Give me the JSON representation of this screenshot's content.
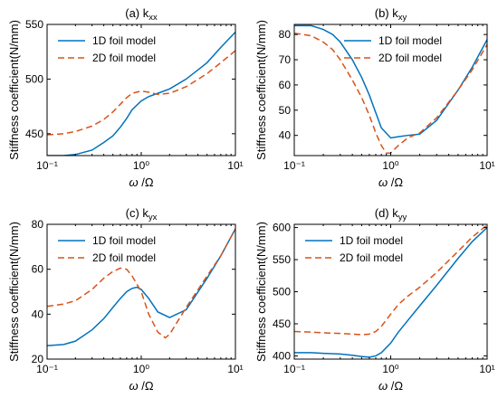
{
  "chart_data": [
    {
      "type": "line",
      "title_main": "(a) k",
      "title_sub": "xx",
      "xlabel_sym": "ω",
      "xlabel_rest": "/Ω",
      "ylabel": "Stiffness coefficient(N/mm)",
      "xscale": "log",
      "xlim": [
        0.1,
        10
      ],
      "ylim": [
        430,
        550
      ],
      "xticks": [
        0.1,
        1,
        10
      ],
      "xtick_labels": [
        "10⁻¹",
        "10⁰",
        "10¹"
      ],
      "yticks": [
        450,
        500,
        550
      ],
      "legend_location": "upper-left",
      "series": [
        {
          "name": "1D foil model",
          "color": "#0072BD",
          "dash": "solid",
          "x": [
            0.1,
            0.15,
            0.2,
            0.3,
            0.4,
            0.5,
            0.6,
            0.7,
            0.8,
            1.0,
            1.2,
            1.5,
            2,
            3,
            5,
            7,
            10
          ],
          "y": [
            430,
            430,
            431,
            435,
            442,
            448,
            456,
            464,
            472,
            480,
            484,
            487,
            491,
            500,
            515,
            529,
            543
          ]
        },
        {
          "name": "2D foil model",
          "color": "#D95319",
          "dash": "dashed",
          "x": [
            0.1,
            0.15,
            0.2,
            0.3,
            0.4,
            0.5,
            0.6,
            0.7,
            0.8,
            1.0,
            1.2,
            1.5,
            2,
            3,
            5,
            7,
            10
          ],
          "y": [
            449,
            450,
            452,
            457,
            463,
            470,
            477,
            483,
            487,
            489,
            488,
            486,
            487,
            493,
            505,
            515,
            526
          ]
        }
      ]
    },
    {
      "type": "line",
      "title_main": "(b) k",
      "title_sub": "xy",
      "xlabel_sym": "ω",
      "xlabel_rest": "/Ω",
      "ylabel": "Stiffness coefficient(N/mm)",
      "xscale": "log",
      "xlim": [
        0.1,
        10
      ],
      "ylim": [
        32,
        84
      ],
      "xticks": [
        0.1,
        1,
        10
      ],
      "xtick_labels": [
        "10⁻¹",
        "10⁰",
        "10¹"
      ],
      "yticks": [
        40,
        50,
        60,
        70,
        80
      ],
      "legend_location": "upper-right",
      "series": [
        {
          "name": "1D foil model",
          "color": "#0072BD",
          "dash": "solid",
          "x": [
            0.1,
            0.15,
            0.2,
            0.25,
            0.3,
            0.4,
            0.5,
            0.6,
            0.7,
            0.8,
            1.0,
            1.2,
            1.5,
            2,
            3,
            5,
            7,
            10
          ],
          "y": [
            83.5,
            83.5,
            82,
            80,
            77,
            70,
            63,
            56,
            49,
            43,
            39,
            39.5,
            40,
            40.5,
            46,
            58,
            67,
            78
          ]
        },
        {
          "name": "2D foil model",
          "color": "#D95319",
          "dash": "dashed",
          "x": [
            0.1,
            0.15,
            0.2,
            0.25,
            0.3,
            0.4,
            0.5,
            0.6,
            0.7,
            0.8,
            0.9,
            1.0,
            1.2,
            1.5,
            2,
            3,
            5,
            7,
            10
          ],
          "y": [
            80.5,
            79.5,
            77,
            74,
            70,
            62,
            55,
            48,
            41,
            36,
            33,
            33,
            36,
            39,
            41,
            47,
            58,
            66,
            76
          ]
        }
      ]
    },
    {
      "type": "line",
      "title_main": "(c) k",
      "title_sub": "yx",
      "xlabel_sym": "ω",
      "xlabel_rest": "/Ω",
      "ylabel": "Stiffness coefficient(N/mm)",
      "xscale": "log",
      "xlim": [
        0.1,
        10
      ],
      "ylim": [
        20,
        80
      ],
      "xticks": [
        0.1,
        1,
        10
      ],
      "xtick_labels": [
        "10⁻¹",
        "10⁰",
        "10¹"
      ],
      "yticks": [
        20,
        40,
        60,
        80
      ],
      "legend_location": "upper-left",
      "series": [
        {
          "name": "1D foil model",
          "color": "#0072BD",
          "dash": "solid",
          "x": [
            0.1,
            0.15,
            0.2,
            0.3,
            0.4,
            0.5,
            0.6,
            0.7,
            0.8,
            0.9,
            1.0,
            1.2,
            1.5,
            2,
            3,
            5,
            7,
            10
          ],
          "y": [
            26,
            26.5,
            28,
            33,
            38,
            43,
            47,
            50,
            51.5,
            52,
            51,
            47,
            41,
            38.5,
            42,
            56,
            66,
            78
          ]
        },
        {
          "name": "2D foil model",
          "color": "#D95319",
          "dash": "dashed",
          "x": [
            0.1,
            0.15,
            0.2,
            0.3,
            0.4,
            0.5,
            0.6,
            0.7,
            0.8,
            1.0,
            1.2,
            1.5,
            1.8,
            2,
            3,
            5,
            7,
            10
          ],
          "y": [
            43.5,
            44.5,
            46,
            51,
            56,
            59,
            60.5,
            60,
            57,
            50,
            40,
            32,
            29.5,
            31,
            43,
            57,
            66,
            78
          ]
        }
      ]
    },
    {
      "type": "line",
      "title_main": "(d) k",
      "title_sub": "yy",
      "xlabel_sym": "ω",
      "xlabel_rest": "/Ω",
      "ylabel": "Stiffness coefficient(N/mm)",
      "xscale": "log",
      "xlim": [
        0.1,
        10
      ],
      "ylim": [
        395,
        605
      ],
      "xticks": [
        0.1,
        1,
        10
      ],
      "xtick_labels": [
        "10⁻¹",
        "10⁰",
        "10¹"
      ],
      "yticks": [
        400,
        450,
        500,
        550,
        600
      ],
      "legend_location": "upper-left",
      "series": [
        {
          "name": "1D foil model",
          "color": "#0072BD",
          "dash": "solid",
          "x": [
            0.1,
            0.15,
            0.2,
            0.3,
            0.4,
            0.5,
            0.6,
            0.7,
            0.8,
            1.0,
            1.2,
            1.5,
            2,
            3,
            5,
            7,
            10
          ],
          "y": [
            405,
            405,
            404,
            403,
            401,
            399,
            398,
            400,
            405,
            420,
            437,
            455,
            478,
            510,
            552,
            578,
            600
          ]
        },
        {
          "name": "2D foil model",
          "color": "#D95319",
          "dash": "dashed",
          "x": [
            0.1,
            0.15,
            0.2,
            0.3,
            0.4,
            0.5,
            0.6,
            0.7,
            0.8,
            1.0,
            1.2,
            1.5,
            2,
            3,
            5,
            7,
            10
          ],
          "y": [
            438,
            437,
            436,
            435,
            434,
            433,
            434,
            438,
            446,
            465,
            480,
            493,
            507,
            530,
            563,
            585,
            604
          ]
        }
      ]
    }
  ]
}
